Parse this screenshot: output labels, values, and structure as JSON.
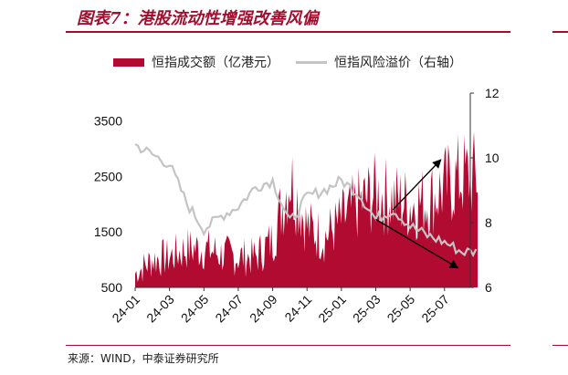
{
  "figure_title": "图表7：港股流动性增强改善风偏",
  "source_text": "来源：WIND，中泰证券研究所",
  "colors": {
    "bar": "#b10b31",
    "line": "#c4c4c4",
    "accent": "#a30e2e",
    "arrow": "#000000"
  },
  "chart_data": {
    "type": "area",
    "title": "",
    "legend": [
      "恒指成交额（亿港元）",
      "恒指风险溢价（右轴）"
    ],
    "legend_position": "top",
    "x_tick_labels": [
      "24-01",
      "24-03",
      "24-05",
      "24-07",
      "24-09",
      "24-11",
      "25-01",
      "25-03",
      "25-05",
      "25-07"
    ],
    "y_left": {
      "range": [
        500,
        4000
      ],
      "ticks": [
        500,
        1500,
        2500,
        3500
      ]
    },
    "y_right": {
      "range": [
        6,
        12
      ],
      "ticks": [
        6,
        8,
        10,
        12
      ]
    },
    "grid": false,
    "series": [
      {
        "name": "恒指成交额（亿港元）",
        "axis": "left",
        "kind": "area",
        "x": [
          "24-01",
          "24-02",
          "24-03",
          "24-04",
          "24-05",
          "24-06",
          "24-07",
          "24-08",
          "24-09",
          "24-10",
          "24-11",
          "24-12",
          "25-01",
          "25-02",
          "25-03",
          "25-04",
          "25-05",
          "25-06",
          "25-07",
          "25-08"
        ],
        "values": [
          750,
          1000,
          1050,
          1200,
          1200,
          1100,
          1050,
          1050,
          1350,
          2500,
          1600,
          1400,
          1700,
          2000,
          2200,
          2100,
          2000,
          2050,
          2300,
          2500
        ]
      },
      {
        "name": "恒指风险溢价（右轴）",
        "axis": "right",
        "kind": "line",
        "x": [
          "24-01",
          "24-02",
          "24-03",
          "24-04",
          "24-05",
          "24-06",
          "24-07",
          "24-08",
          "24-09",
          "24-10",
          "24-11",
          "24-12",
          "25-01",
          "25-02",
          "25-03",
          "25-04",
          "25-05",
          "25-06",
          "25-07",
          "25-08"
        ],
        "values": [
          10.4,
          10.1,
          9.8,
          8.6,
          7.8,
          8.2,
          8.5,
          9.1,
          9.3,
          8.0,
          8.8,
          9.0,
          9.3,
          8.9,
          8.1,
          8.4,
          7.9,
          7.6,
          7.4,
          7.1
        ]
      }
    ],
    "annotations": [
      {
        "type": "arrow",
        "from": [
          "25-04",
          1900
        ],
        "to": [
          "25-07",
          2800
        ],
        "axis": "left"
      },
      {
        "type": "arrow",
        "from": [
          "25-03",
          8.1
        ],
        "to": [
          "25-08",
          6.6
        ],
        "axis": "right"
      }
    ]
  }
}
